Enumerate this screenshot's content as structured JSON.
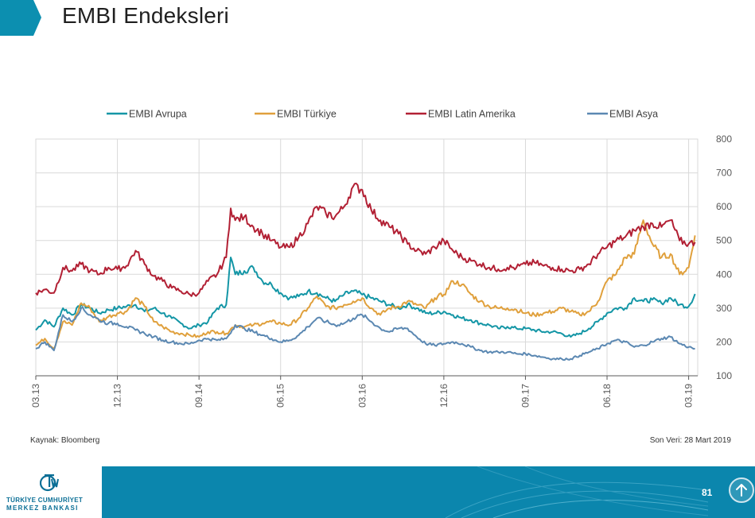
{
  "title": "EMBI Endeksleri",
  "source": "Kaynak: Bloomberg",
  "last_data": "Son Veri: 28 Mart  2019",
  "footer": {
    "logo_line1": "TÜRKİYE CUMHURİYET",
    "logo_line2": "MERKEZ BANKASI",
    "page_number": "81"
  },
  "icons": {
    "logo": "tcmb-logo-icon",
    "up": "arrow-up-icon"
  },
  "chart_data": {
    "type": "line",
    "title": "",
    "xlabel": "",
    "ylabel": "",
    "ylim": [
      100,
      800
    ],
    "yticks": [
      100,
      200,
      300,
      400,
      500,
      600,
      700,
      800
    ],
    "y_axis_side": "right",
    "grid": true,
    "legend_position": "top",
    "x_range": [
      0,
      73
    ],
    "x_tick_positions": [
      0,
      9,
      18,
      27,
      36,
      45,
      54,
      63,
      72
    ],
    "x_tick_labels": [
      "03.13",
      "12.13",
      "09.14",
      "06.15",
      "03.16",
      "12.16",
      "09.17",
      "06.18",
      "03.19"
    ],
    "x_unit": "months since March 2013",
    "series": [
      {
        "name": "EMBI Avrupa",
        "color": "#1496a6",
        "points": [
          [
            0,
            235
          ],
          [
            1,
            265
          ],
          [
            2,
            245
          ],
          [
            3,
            300
          ],
          [
            4,
            280
          ],
          [
            5,
            310
          ],
          [
            6,
            300
          ],
          [
            7,
            285
          ],
          [
            8,
            295
          ],
          [
            9,
            300
          ],
          [
            10,
            305
          ],
          [
            11,
            310
          ],
          [
            12,
            290
          ],
          [
            13,
            300
          ],
          [
            14,
            285
          ],
          [
            15,
            270
          ],
          [
            16,
            255
          ],
          [
            17,
            240
          ],
          [
            18,
            250
          ],
          [
            19,
            260
          ],
          [
            20,
            300
          ],
          [
            21,
            310
          ],
          [
            21.5,
            450
          ],
          [
            22,
            400
          ],
          [
            23,
            410
          ],
          [
            24,
            420
          ],
          [
            25,
            380
          ],
          [
            26,
            370
          ],
          [
            27,
            345
          ],
          [
            28,
            330
          ],
          [
            29,
            335
          ],
          [
            30,
            350
          ],
          [
            31,
            345
          ],
          [
            32,
            330
          ],
          [
            33,
            320
          ],
          [
            34,
            340
          ],
          [
            35,
            350
          ],
          [
            36,
            340
          ],
          [
            37,
            330
          ],
          [
            38,
            320
          ],
          [
            39,
            310
          ],
          [
            40,
            300
          ],
          [
            41,
            310
          ],
          [
            42,
            300
          ],
          [
            43,
            285
          ],
          [
            44,
            285
          ],
          [
            45,
            290
          ],
          [
            46,
            280
          ],
          [
            47,
            270
          ],
          [
            48,
            265
          ],
          [
            49,
            255
          ],
          [
            50,
            250
          ],
          [
            51,
            240
          ],
          [
            52,
            245
          ],
          [
            53,
            240
          ],
          [
            54,
            240
          ],
          [
            55,
            235
          ],
          [
            56,
            230
          ],
          [
            57,
            230
          ],
          [
            58,
            225
          ],
          [
            59,
            215
          ],
          [
            60,
            225
          ],
          [
            61,
            240
          ],
          [
            62,
            260
          ],
          [
            63,
            285
          ],
          [
            64,
            300
          ],
          [
            65,
            300
          ],
          [
            66,
            330
          ],
          [
            67,
            320
          ],
          [
            68,
            325
          ],
          [
            69,
            315
          ],
          [
            70,
            330
          ],
          [
            71,
            310
          ],
          [
            72,
            305
          ],
          [
            72.7,
            342
          ]
        ]
      },
      {
        "name": "EMBI Türkiye",
        "color": "#e0a03c",
        "points": [
          [
            0,
            190
          ],
          [
            1,
            210
          ],
          [
            2,
            180
          ],
          [
            3,
            260
          ],
          [
            4,
            250
          ],
          [
            5,
            315
          ],
          [
            6,
            300
          ],
          [
            7,
            260
          ],
          [
            8,
            275
          ],
          [
            9,
            285
          ],
          [
            10,
            290
          ],
          [
            11,
            330
          ],
          [
            12,
            305
          ],
          [
            13,
            260
          ],
          [
            14,
            245
          ],
          [
            15,
            230
          ],
          [
            16,
            225
          ],
          [
            17,
            220
          ],
          [
            18,
            215
          ],
          [
            19,
            230
          ],
          [
            20,
            230
          ],
          [
            21,
            225
          ],
          [
            22,
            250
          ],
          [
            23,
            245
          ],
          [
            24,
            250
          ],
          [
            25,
            255
          ],
          [
            26,
            260
          ],
          [
            27,
            255
          ],
          [
            28,
            250
          ],
          [
            29,
            270
          ],
          [
            30,
            300
          ],
          [
            31,
            335
          ],
          [
            32,
            305
          ],
          [
            33,
            300
          ],
          [
            34,
            310
          ],
          [
            35,
            320
          ],
          [
            36,
            330
          ],
          [
            37,
            300
          ],
          [
            38,
            280
          ],
          [
            39,
            300
          ],
          [
            40,
            305
          ],
          [
            41,
            320
          ],
          [
            42,
            310
          ],
          [
            43,
            300
          ],
          [
            44,
            330
          ],
          [
            45,
            340
          ],
          [
            46,
            380
          ],
          [
            47,
            370
          ],
          [
            48,
            340
          ],
          [
            49,
            320
          ],
          [
            50,
            305
          ],
          [
            51,
            300
          ],
          [
            52,
            300
          ],
          [
            53,
            295
          ],
          [
            54,
            285
          ],
          [
            55,
            280
          ],
          [
            56,
            285
          ],
          [
            57,
            290
          ],
          [
            58,
            300
          ],
          [
            59,
            290
          ],
          [
            60,
            280
          ],
          [
            61,
            290
          ],
          [
            62,
            320
          ],
          [
            63,
            380
          ],
          [
            64,
            400
          ],
          [
            65,
            450
          ],
          [
            66,
            460
          ],
          [
            67,
            560
          ],
          [
            68,
            490
          ],
          [
            69,
            450
          ],
          [
            70,
            460
          ],
          [
            71,
            400
          ],
          [
            72,
            420
          ],
          [
            72.7,
            515
          ]
        ]
      },
      {
        "name": "EMBI Latin Amerika",
        "color": "#b22034",
        "points": [
          [
            0,
            345
          ],
          [
            1,
            355
          ],
          [
            2,
            345
          ],
          [
            3,
            420
          ],
          [
            4,
            410
          ],
          [
            5,
            430
          ],
          [
            6,
            410
          ],
          [
            7,
            400
          ],
          [
            8,
            420
          ],
          [
            9,
            415
          ],
          [
            10,
            425
          ],
          [
            11,
            470
          ],
          [
            12,
            430
          ],
          [
            13,
            395
          ],
          [
            14,
            380
          ],
          [
            15,
            360
          ],
          [
            16,
            350
          ],
          [
            17,
            340
          ],
          [
            18,
            345
          ],
          [
            19,
            380
          ],
          [
            20,
            400
          ],
          [
            21,
            450
          ],
          [
            21.5,
            595
          ],
          [
            22,
            560
          ],
          [
            23,
            570
          ],
          [
            24,
            540
          ],
          [
            25,
            520
          ],
          [
            26,
            500
          ],
          [
            27,
            480
          ],
          [
            28,
            480
          ],
          [
            29,
            510
          ],
          [
            30,
            550
          ],
          [
            31,
            600
          ],
          [
            32,
            580
          ],
          [
            33,
            570
          ],
          [
            34,
            600
          ],
          [
            35,
            660
          ],
          [
            36,
            650
          ],
          [
            37,
            590
          ],
          [
            38,
            560
          ],
          [
            39,
            540
          ],
          [
            40,
            520
          ],
          [
            41,
            490
          ],
          [
            42,
            470
          ],
          [
            43,
            460
          ],
          [
            44,
            480
          ],
          [
            45,
            500
          ],
          [
            46,
            470
          ],
          [
            47,
            450
          ],
          [
            48,
            440
          ],
          [
            49,
            430
          ],
          [
            50,
            420
          ],
          [
            51,
            415
          ],
          [
            52,
            420
          ],
          [
            53,
            420
          ],
          [
            54,
            430
          ],
          [
            55,
            435
          ],
          [
            56,
            425
          ],
          [
            57,
            420
          ],
          [
            58,
            415
          ],
          [
            59,
            410
          ],
          [
            60,
            415
          ],
          [
            61,
            430
          ],
          [
            62,
            460
          ],
          [
            63,
            480
          ],
          [
            64,
            500
          ],
          [
            65,
            510
          ],
          [
            66,
            530
          ],
          [
            67,
            540
          ],
          [
            68,
            550
          ],
          [
            69,
            540
          ],
          [
            70,
            560
          ],
          [
            71,
            500
          ],
          [
            72,
            490
          ],
          [
            72.7,
            495
          ]
        ]
      },
      {
        "name": "EMBI Asya",
        "color": "#5b88b2",
        "points": [
          [
            0,
            180
          ],
          [
            1,
            200
          ],
          [
            2,
            175
          ],
          [
            3,
            280
          ],
          [
            4,
            260
          ],
          [
            5,
            300
          ],
          [
            6,
            280
          ],
          [
            7,
            265
          ],
          [
            8,
            255
          ],
          [
            9,
            255
          ],
          [
            10,
            245
          ],
          [
            11,
            235
          ],
          [
            12,
            225
          ],
          [
            13,
            215
          ],
          [
            14,
            205
          ],
          [
            15,
            200
          ],
          [
            16,
            195
          ],
          [
            17,
            195
          ],
          [
            18,
            205
          ],
          [
            19,
            210
          ],
          [
            20,
            205
          ],
          [
            21,
            210
          ],
          [
            22,
            250
          ],
          [
            23,
            240
          ],
          [
            24,
            230
          ],
          [
            25,
            220
          ],
          [
            26,
            210
          ],
          [
            27,
            200
          ],
          [
            28,
            205
          ],
          [
            29,
            220
          ],
          [
            30,
            245
          ],
          [
            31,
            270
          ],
          [
            32,
            260
          ],
          [
            33,
            250
          ],
          [
            34,
            255
          ],
          [
            35,
            270
          ],
          [
            36,
            280
          ],
          [
            37,
            260
          ],
          [
            38,
            240
          ],
          [
            39,
            230
          ],
          [
            40,
            240
          ],
          [
            41,
            240
          ],
          [
            42,
            215
          ],
          [
            43,
            195
          ],
          [
            44,
            190
          ],
          [
            45,
            195
          ],
          [
            46,
            200
          ],
          [
            47,
            195
          ],
          [
            48,
            185
          ],
          [
            49,
            175
          ],
          [
            50,
            170
          ],
          [
            51,
            170
          ],
          [
            52,
            170
          ],
          [
            53,
            165
          ],
          [
            54,
            165
          ],
          [
            55,
            160
          ],
          [
            56,
            155
          ],
          [
            57,
            150
          ],
          [
            58,
            150
          ],
          [
            59,
            150
          ],
          [
            60,
            160
          ],
          [
            61,
            170
          ],
          [
            62,
            180
          ],
          [
            63,
            195
          ],
          [
            64,
            205
          ],
          [
            65,
            200
          ],
          [
            66,
            185
          ],
          [
            67,
            190
          ],
          [
            68,
            200
          ],
          [
            69,
            210
          ],
          [
            70,
            215
          ],
          [
            71,
            195
          ],
          [
            72,
            185
          ],
          [
            72.7,
            180
          ]
        ]
      }
    ]
  }
}
